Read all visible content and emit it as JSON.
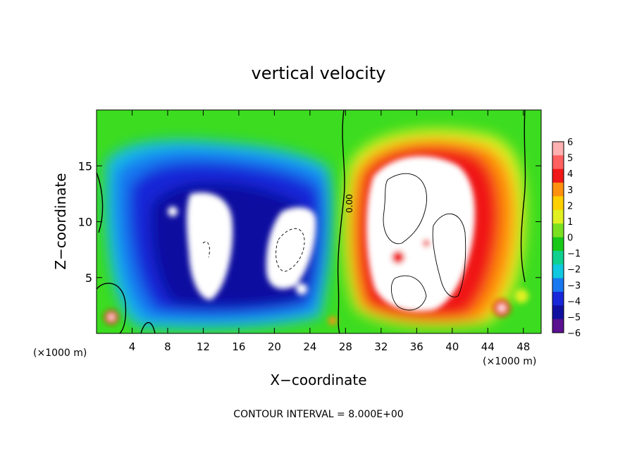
{
  "chart_data": {
    "type": "heatmap",
    "title": "vertical velocity",
    "xlabel": "X−coordinate",
    "ylabel": "Z−coordinate",
    "x_unit_label_left": "(×1000 m)",
    "x_unit_label_right": "(×1000 m)",
    "xlim": [
      0,
      50
    ],
    "ylim": [
      0,
      20
    ],
    "x_ticks": [
      4,
      8,
      12,
      16,
      20,
      24,
      28,
      32,
      36,
      40,
      44,
      48
    ],
    "y_ticks": [
      5,
      10,
      15
    ],
    "colorbar": {
      "ticks": [
        6,
        5,
        4,
        3,
        2,
        1,
        0,
        -1,
        -2,
        -3,
        -4,
        -5,
        -6
      ],
      "tick_labels": [
        "6",
        "5",
        "4",
        "3",
        "2",
        "1",
        "0",
        "−1",
        "−2",
        "−3",
        "−4",
        "−5",
        "−6"
      ],
      "colors": [
        "#ffb0b0",
        "#ff6060",
        "#f01818",
        "#ff9010",
        "#ffd000",
        "#e0f020",
        "#7ae020",
        "#18c818",
        "#10d090",
        "#10c8e0",
        "#1878f0",
        "#1828d8",
        "#1010a0",
        "#5a1090"
      ]
    },
    "contour_label": "0.00",
    "contour_interval_text": "CONTOUR INTERVAL = 8.000E+00",
    "features": [
      {
        "kind": "downdraft",
        "x_range": [
          2,
          27
        ],
        "z_range": [
          1,
          18
        ],
        "sign": "negative"
      },
      {
        "kind": "updraft",
        "x_range": [
          28,
          46
        ],
        "z_range": [
          1,
          17
        ],
        "sign": "positive"
      }
    ]
  }
}
